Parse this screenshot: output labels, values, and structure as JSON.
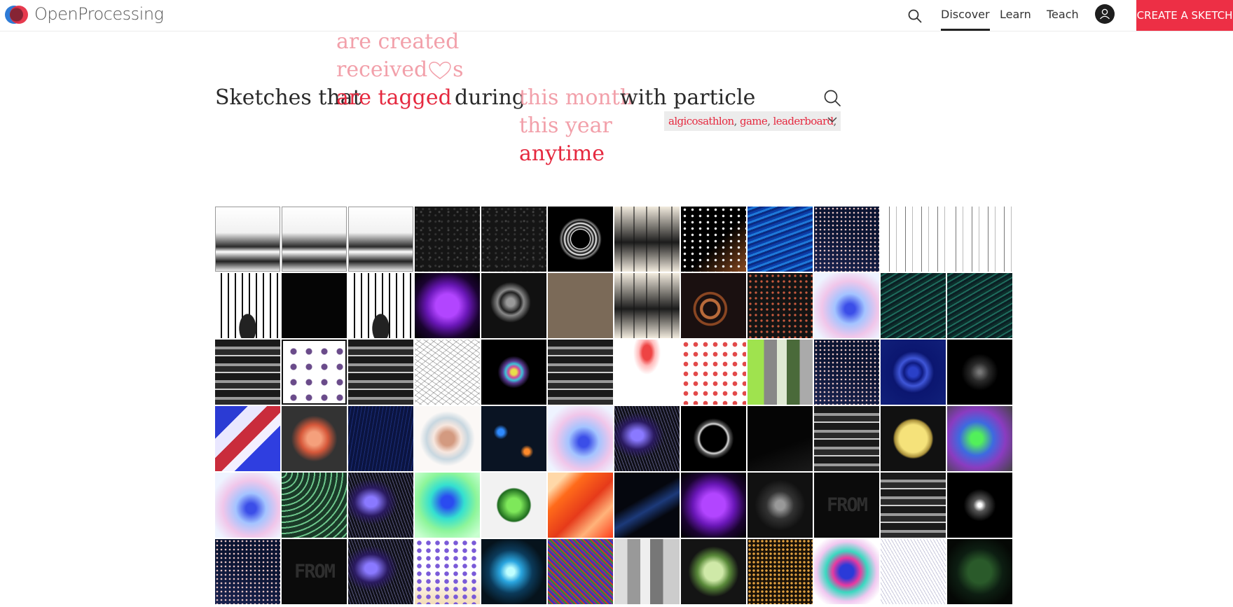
{
  "brand": {
    "name": "OpenProcessing"
  },
  "nav": {
    "links": [
      {
        "label": "Discover",
        "active": true
      },
      {
        "label": "Learn",
        "active": false
      },
      {
        "label": "Teach",
        "active": false
      }
    ],
    "create_label": "CREATE A SKETCH",
    "accent": "#ed2f45"
  },
  "filter": {
    "prefix": "Sketches that",
    "verb_options": [
      "are created",
      "received",
      "are tagged"
    ],
    "verb_suffix": "s",
    "verb_selected": "are tagged",
    "during_label": "during",
    "time_options": [
      "this month",
      "this year",
      "anytime"
    ],
    "time_selected": "anytime",
    "with_label": "with particle",
    "tags": [
      "algicosathlon",
      "game",
      "leaderboard"
    ]
  },
  "grid": {
    "thumbs": [
      "s-sq-white",
      "s-sq-white",
      "s-sq-white",
      "s-dark-noise",
      "s-dark-noise",
      "s-rings",
      "s-cream-lines",
      "s-scatter",
      "s-blue-wave",
      "s-navy-dots",
      "s-white-lines",
      "s-white-lines",
      "s-mono-pillars",
      "s-black",
      "s-mono-pillars",
      "s-purple-blob",
      "s-grey-swirl",
      "s-taupe",
      "s-cream-lines",
      "s-copper-rings",
      "s-dots-dark",
      "s-pastel-glow",
      "s-teal-flow",
      "s-teal-flow",
      "s-grey-stripes",
      "s-dot-grid",
      "s-grey-stripes",
      "s-white-scribble",
      "s-rainbow-burst",
      "s-grey-stripes",
      "s-red-spray",
      "s-red-dots",
      "s-green-collage",
      "s-navy-dots",
      "s-blue-spiral",
      "s-dark-sphere",
      "s-red-blue-prism",
      "s-coral-flower",
      "s-navy-lines",
      "s-petal",
      "s-space-lights",
      "s-pastel-glow",
      "s-purple-face",
      "s-dark-ring",
      "s-dark-lines",
      "s-grey-stripes",
      "s-yellow-planet",
      "s-green-glow",
      "s-pastel-glow",
      "s-green-waves",
      "s-purple-face",
      "s-aqua-glow",
      "s-green-orb",
      "s-orange-fire",
      "s-dark-blue",
      "s-purple-blob",
      "s-smoke",
      "s-from-text",
      "s-grey-stripes",
      "s-white-star",
      "s-navy-dots",
      "s-from-text",
      "s-purple-face",
      "s-balls",
      "s-cyan-lights",
      "s-rainbow-noise",
      "s-grey-blocks",
      "s-green-blob",
      "s-gold-grid",
      "s-color-swirl",
      "s-grey-scribble",
      "s-green-sphere"
    ]
  }
}
